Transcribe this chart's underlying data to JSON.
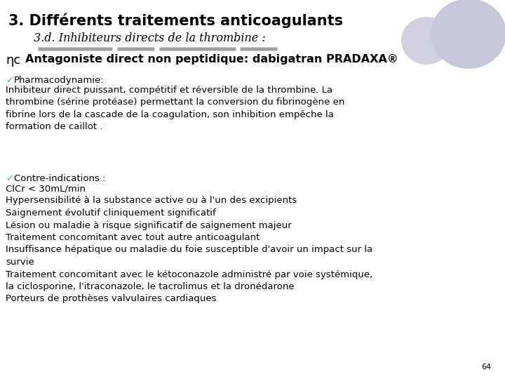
{
  "title1": "3. Différents traitements anticoagulants",
  "title2": "3.d. Inhibiteurs directs de la thrombine :",
  "subtitle_sym": "ηc",
  "subtitle_text": "  Antagoniste direct non peptidique: dabigatran PRADAXA®",
  "section1_header_check": "✓",
  "section1_header_text": " Pharmacodynamie:",
  "section1_body": "Inhibiteur direct puissant, compétitif et réversible de la thrombine. La\nthrombine (sérine protéase) permettant la conversion du fibrinogène en\nfibrine lors de la cascade de la coagulation, son inhibition empêche la\nformation de caillot .",
  "section2_header_check": "✓",
  "section2_header_text": " Contre-indications :",
  "section2_body": "ClCr < 30mL/min\nHypersensibilité à la substance active ou à l'un des excipients\nSaignement évolutif cliniquement significatif\nLésion ou maladie à risque significatif de saignement majeur\nTraitement concomitant avec tout autre anticoagulant\nInsuffisance hépatique ou maladie du foie susceptible d'avoir un impact sur la\nsurvie\nTraitement concomitant avec le kétoconazole administré par voie systémique,\nla ciclosporine, l'itraconazole, le tacrolimus et la dronédarone\nPorteurs de prothèses valvulaires cardiaques",
  "page_number": "64",
  "bg_color": "#ffffff",
  "title1_color": "#000000",
  "title2_color": "#000000",
  "subtitle_color": "#000000",
  "body_color": "#000000",
  "check_color": "#5b9bd5",
  "deco_color": "#c8c8dc",
  "underline_color": "#a0a0a0",
  "title1_fontsize": 15,
  "title2_fontsize": 11.5,
  "subtitle_fontsize": 11.5,
  "body_fontsize": 9.5,
  "header_fontsize": 9.5,
  "page_fontsize": 8
}
